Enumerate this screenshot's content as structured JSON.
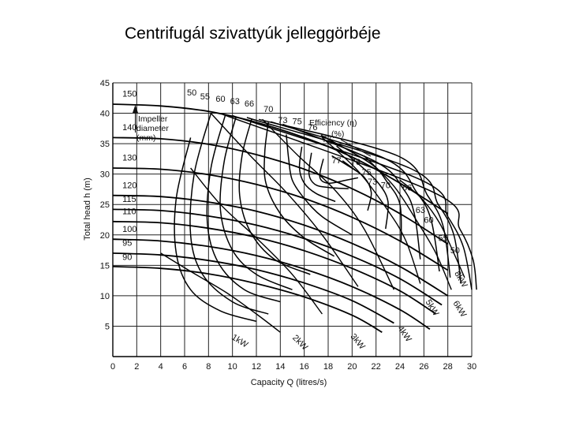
{
  "slide": {
    "title": "Centrifugál szivattyúk jelleggörbéje"
  },
  "chart_data": {
    "type": "line",
    "xlabel": "Capacity Q (litres/s)",
    "ylabel": "Total head h (m)",
    "xlim": [
      0,
      30
    ],
    "ylim": [
      0,
      45
    ],
    "x_ticks": [
      "0",
      "2",
      "4",
      "6",
      "8",
      "10",
      "12",
      "14",
      "16",
      "18",
      "20",
      "22",
      "24",
      "26",
      "28",
      "30"
    ],
    "y_ticks": [
      "0",
      "5",
      "10",
      "15",
      "20",
      "25",
      "30",
      "35",
      "40",
      "45"
    ],
    "grid": true,
    "annotations": {
      "impeller_title": [
        "Impeller",
        "diameter",
        "(mm)"
      ],
      "efficiency_title": [
        "Efficiency (η)",
        "(%)"
      ]
    },
    "impeller_curves": [
      {
        "name": "150",
        "points": [
          [
            0,
            41.5
          ],
          [
            4,
            41.2
          ],
          [
            8,
            40.3
          ],
          [
            12,
            38.5
          ],
          [
            16,
            36
          ],
          [
            20,
            32.8
          ],
          [
            24,
            28.5
          ],
          [
            28,
            23.5
          ]
        ]
      },
      {
        "name": "140",
        "points": [
          [
            0,
            36
          ],
          [
            4,
            35.8
          ],
          [
            8,
            34.9
          ],
          [
            12,
            33.2
          ],
          [
            16,
            30.8
          ],
          [
            20,
            27.6
          ],
          [
            24,
            23.5
          ],
          [
            28,
            18.5
          ]
        ]
      },
      {
        "name": "130",
        "points": [
          [
            0,
            31
          ],
          [
            4,
            30.8
          ],
          [
            8,
            29.9
          ],
          [
            12,
            28.3
          ],
          [
            16,
            26
          ],
          [
            20,
            22.9
          ],
          [
            24,
            19
          ],
          [
            28,
            14.2
          ]
        ]
      },
      {
        "name": "120",
        "points": [
          [
            0,
            26.5
          ],
          [
            4,
            26.3
          ],
          [
            8,
            25.4
          ],
          [
            12,
            23.9
          ],
          [
            16,
            21.6
          ],
          [
            20,
            18.6
          ],
          [
            24,
            14.8
          ],
          [
            28,
            10
          ]
        ]
      },
      {
        "name": "115",
        "points": [
          [
            0,
            24.2
          ],
          [
            4,
            24
          ],
          [
            8,
            23.1
          ],
          [
            12,
            21.6
          ],
          [
            16,
            19.4
          ],
          [
            20,
            16.5
          ],
          [
            24,
            12.8
          ],
          [
            27.5,
            8.5
          ]
        ]
      },
      {
        "name": "110",
        "points": [
          [
            0,
            22.2
          ],
          [
            4,
            22
          ],
          [
            8,
            21.1
          ],
          [
            12,
            19.6
          ],
          [
            16,
            17.4
          ],
          [
            20,
            14.5
          ],
          [
            24,
            10.8
          ],
          [
            27,
            7
          ]
        ]
      },
      {
        "name": "100",
        "points": [
          [
            0,
            19.3
          ],
          [
            4,
            19
          ],
          [
            8,
            18.1
          ],
          [
            12,
            16.6
          ],
          [
            16,
            14.4
          ],
          [
            20,
            11.5
          ],
          [
            24,
            7.7
          ],
          [
            26.5,
            4.5
          ]
        ]
      },
      {
        "name": "95",
        "points": [
          [
            0,
            17
          ],
          [
            4,
            16.7
          ],
          [
            8,
            15.8
          ],
          [
            12,
            14.3
          ],
          [
            16,
            12.1
          ],
          [
            20,
            9.2
          ],
          [
            23.5,
            5.5
          ]
        ]
      },
      {
        "name": "90",
        "points": [
          [
            0,
            14.8
          ],
          [
            4,
            14.5
          ],
          [
            8,
            13.6
          ],
          [
            12,
            12
          ],
          [
            16,
            9.8
          ],
          [
            20,
            6.8
          ],
          [
            22.5,
            4
          ]
        ]
      }
    ],
    "efficiency_curves": [
      {
        "name": "50",
        "points": [
          [
            6.5,
            36
          ],
          [
            5.3,
            26
          ],
          [
            5.3,
            17
          ],
          [
            6.5,
            11
          ],
          [
            9,
            7.5
          ],
          [
            12,
            5.8
          ]
        ]
      },
      {
        "name": "55",
        "points": [
          [
            8.2,
            40
          ],
          [
            6.8,
            30
          ],
          [
            6.5,
            20
          ],
          [
            7.5,
            13.5
          ],
          [
            10,
            9
          ],
          [
            13,
            7
          ]
        ]
      },
      {
        "name": "60",
        "points": [
          [
            9.4,
            39.7
          ],
          [
            8.2,
            31
          ],
          [
            7.9,
            22
          ],
          [
            8.8,
            15.5
          ],
          [
            11,
            11
          ],
          [
            14,
            9
          ]
        ]
      },
      {
        "name": "63",
        "points": [
          [
            10.3,
            39.4
          ],
          [
            9.3,
            32
          ],
          [
            9,
            24
          ],
          [
            10,
            17.5
          ],
          [
            12,
            13.5
          ],
          [
            15,
            11
          ]
        ]
      },
      {
        "name": "66",
        "points": [
          [
            11.6,
            39
          ],
          [
            10.8,
            33
          ],
          [
            10.6,
            26.5
          ],
          [
            11.5,
            20.5
          ],
          [
            13.5,
            16
          ],
          [
            16.5,
            13.5
          ]
        ]
      },
      {
        "name": "70",
        "points": [
          [
            13,
            38.5
          ],
          [
            12.7,
            33.5
          ],
          [
            12.8,
            28.5
          ],
          [
            14,
            23.5
          ],
          [
            16,
            19.5
          ],
          [
            18.5,
            16.5
          ]
        ]
      },
      {
        "name": "73",
        "points": [
          [
            14.5,
            36.5
          ],
          [
            14.7,
            32.5
          ],
          [
            15,
            29
          ],
          [
            16,
            26
          ],
          [
            17.5,
            23
          ],
          [
            20,
            20
          ]
        ]
      },
      {
        "name": "75",
        "points": [
          [
            15.8,
            34.5
          ],
          [
            15.6,
            31
          ],
          [
            16,
            28.5
          ],
          [
            17,
            26.8
          ],
          [
            18.6,
            25.5
          ]
        ]
      },
      {
        "name": "76",
        "points": [
          [
            16.6,
            33.5
          ],
          [
            16.4,
            30
          ],
          [
            16.9,
            28.3
          ],
          [
            18,
            27.8
          ],
          [
            19.7,
            27.6
          ]
        ]
      },
      {
        "name": "77",
        "points": [
          [
            17.6,
            32.5
          ],
          [
            17.3,
            29.5
          ],
          [
            18,
            28.5
          ],
          [
            19.5,
            29
          ],
          [
            20.5,
            29.4
          ]
        ]
      },
      {
        "name": "77",
        "points": [
          [
            19.2,
            32.2
          ],
          [
            20.3,
            30.6
          ]
        ]
      },
      {
        "name": "76",
        "points": [
          [
            18.3,
            33
          ],
          [
            19.8,
            31.2
          ],
          [
            21,
            29.5
          ],
          [
            21.6,
            27
          ],
          [
            21.3,
            24
          ]
        ]
      },
      {
        "name": "75",
        "points": [
          [
            18.7,
            34.6
          ],
          [
            20.8,
            31.2
          ],
          [
            22.2,
            28.5
          ],
          [
            23,
            25.5
          ],
          [
            22.8,
            21
          ]
        ]
      },
      {
        "name": "73",
        "points": [
          [
            17.4,
            36.4
          ],
          [
            21.5,
            31.8
          ],
          [
            23,
            28.5
          ],
          [
            24,
            25
          ],
          [
            24.1,
            19
          ]
        ]
      },
      {
        "name": "70",
        "points": [
          [
            14.2,
            38.2
          ],
          [
            22,
            32
          ],
          [
            24.3,
            27.5
          ],
          [
            25.2,
            23.5
          ],
          [
            25.7,
            16
          ]
        ]
      },
      {
        "name": "66",
        "points": [
          [
            13.2,
            38.6
          ],
          [
            22.8,
            32.5
          ],
          [
            25.4,
            27
          ],
          [
            26.6,
            22.5
          ],
          [
            27.3,
            14
          ]
        ]
      },
      {
        "name": "63",
        "points": [
          [
            12.2,
            39
          ],
          [
            23.8,
            33
          ],
          [
            26.3,
            26.5
          ],
          [
            27.6,
            21.5
          ],
          [
            28.2,
            13
          ]
        ]
      },
      {
        "name": "60",
        "points": [
          [
            11.2,
            39.3
          ],
          [
            24.8,
            31
          ],
          [
            27.2,
            25
          ],
          [
            28.5,
            20
          ],
          [
            29.1,
            12
          ]
        ]
      },
      {
        "name": "55",
        "points": [
          [
            10,
            39.6
          ],
          [
            25.8,
            29
          ],
          [
            28,
            23
          ],
          [
            29.3,
            18
          ],
          [
            30,
            11
          ]
        ]
      },
      {
        "name": "50",
        "points": [
          [
            9.2,
            39.8
          ],
          [
            26.8,
            27
          ],
          [
            29,
            21
          ],
          [
            30.1,
            16
          ],
          [
            30.4,
            11
          ]
        ]
      }
    ],
    "power_curves": [
      {
        "name": "1kW",
        "points": [
          [
            4,
            17
          ],
          [
            6.5,
            14
          ],
          [
            9.5,
            10.5
          ],
          [
            12,
            7
          ],
          [
            14,
            4
          ]
        ]
      },
      {
        "name": "2kW",
        "points": [
          [
            6.5,
            31
          ],
          [
            9,
            25
          ],
          [
            12,
            19.5
          ],
          [
            15,
            13.5
          ],
          [
            17.5,
            7
          ]
        ]
      },
      {
        "name": "3kW",
        "points": [
          [
            8.2,
            40
          ],
          [
            11.5,
            33
          ],
          [
            14.5,
            27
          ],
          [
            17.5,
            20
          ],
          [
            20.5,
            11.5
          ]
        ]
      },
      {
        "name": "4kW",
        "points": [
          [
            12.5,
            39
          ],
          [
            15.5,
            33
          ],
          [
            18.5,
            27.5
          ],
          [
            21,
            21
          ],
          [
            23.5,
            11
          ]
        ]
      },
      {
        "name": "5kW",
        "points": [
          [
            17.5,
            36
          ],
          [
            20.5,
            30.5
          ],
          [
            23,
            24
          ],
          [
            24.5,
            19
          ],
          [
            25.7,
            12
          ]
        ]
      },
      {
        "name": "6kW",
        "points": [
          [
            21,
            33
          ],
          [
            23.5,
            28
          ],
          [
            25.5,
            22
          ],
          [
            27,
            17
          ],
          [
            28.3,
            11
          ]
        ]
      },
      {
        "name": "8kW",
        "points": [
          [
            24,
            29
          ],
          [
            25.8,
            26
          ],
          [
            27.3,
            22
          ],
          [
            28.5,
            17
          ],
          [
            29.4,
            13
          ]
        ]
      }
    ],
    "inline_labels": [
      {
        "text": "150",
        "x": 0.8,
        "y": 42.7
      },
      {
        "text": "140",
        "x": 0.8,
        "y": 37.2
      },
      {
        "text": "130",
        "x": 0.8,
        "y": 32.2
      },
      {
        "text": "120",
        "x": 0.8,
        "y": 27.7
      },
      {
        "text": "115",
        "x": 0.8,
        "y": 25.4
      },
      {
        "text": "110",
        "x": 0.8,
        "y": 23.4
      },
      {
        "text": "100",
        "x": 0.8,
        "y": 20.5
      },
      {
        "text": "95",
        "x": 0.8,
        "y": 18.2
      },
      {
        "text": "90",
        "x": 0.8,
        "y": 15.9
      },
      {
        "text": "50",
        "x": 6.2,
        "y": 42.9
      },
      {
        "text": "55",
        "x": 7.3,
        "y": 42.3
      },
      {
        "text": "60",
        "x": 8.6,
        "y": 41.9
      },
      {
        "text": "63",
        "x": 9.8,
        "y": 41.5
      },
      {
        "text": "66",
        "x": 11,
        "y": 41.1
      },
      {
        "text": "70",
        "x": 12.6,
        "y": 40.2
      },
      {
        "text": "73",
        "x": 13.8,
        "y": 38.4
      },
      {
        "text": "75",
        "x": 15,
        "y": 38.2
      },
      {
        "text": "76",
        "x": 16.3,
        "y": 37.2
      },
      {
        "text": "77",
        "x": 17.5,
        "y": 35.3
      },
      {
        "text": "77",
        "x": 18.3,
        "y": 31.8
      },
      {
        "text": "76",
        "x": 19.9,
        "y": 31.5
      },
      {
        "text": "75",
        "x": 20.8,
        "y": 29.8
      },
      {
        "text": "73",
        "x": 21.3,
        "y": 28.3
      },
      {
        "text": "70",
        "x": 22.4,
        "y": 27.7
      },
      {
        "text": "66",
        "x": 24.2,
        "y": 27.3
      },
      {
        "text": "63",
        "x": 25.3,
        "y": 23.6
      },
      {
        "text": "60",
        "x": 26,
        "y": 22
      },
      {
        "text": "55",
        "x": 27.2,
        "y": 19
      },
      {
        "text": "50",
        "x": 28.2,
        "y": 17
      }
    ],
    "power_labels": [
      {
        "text": "1kW",
        "x": 10.5,
        "y": 2.2,
        "angle": 32
      },
      {
        "text": "2kW",
        "x": 15.5,
        "y": 2,
        "angle": 45
      },
      {
        "text": "3kW",
        "x": 20.3,
        "y": 2.2,
        "angle": 50
      },
      {
        "text": "4kW",
        "x": 24.2,
        "y": 3.5,
        "angle": 55
      },
      {
        "text": "5kW",
        "x": 26.5,
        "y": 7.8,
        "angle": 58
      },
      {
        "text": "6kW",
        "x": 28.8,
        "y": 7.6,
        "angle": 58
      },
      {
        "text": "8kW",
        "x": 28.9,
        "y": 12.5,
        "angle": 60
      }
    ]
  }
}
